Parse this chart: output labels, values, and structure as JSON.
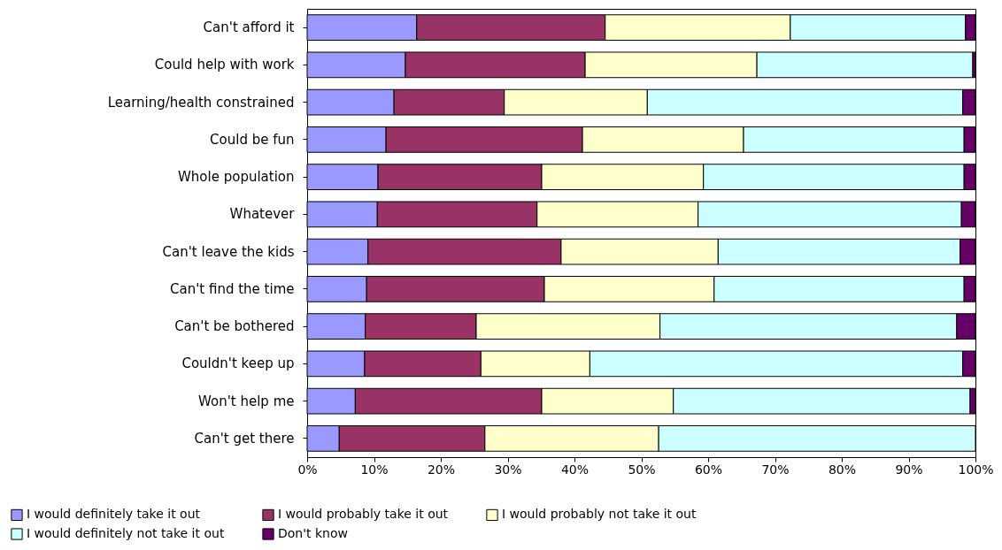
{
  "chart_data": {
    "type": "bar",
    "orientation": "horizontal",
    "stacked": true,
    "categories": [
      "Can't afford it",
      "Could help with work",
      "Learning/health constrained",
      "Could be fun",
      "Whole population",
      "Whatever",
      "Can't leave the kids",
      "Can't find the time",
      "Can't be bothered",
      "Couldn't keep up",
      "Won't help me",
      "Can't get there"
    ],
    "series": [
      {
        "name": "I would definitely take it out",
        "color": "#9999ff",
        "values": [
          16.4,
          14.7,
          13.0,
          11.8,
          10.6,
          10.5,
          9.1,
          8.9,
          8.7,
          8.6,
          7.2,
          4.8
        ]
      },
      {
        "name": "I would probably take it out",
        "color": "#993366",
        "values": [
          28.2,
          26.9,
          16.5,
          29.4,
          24.5,
          23.9,
          28.9,
          26.6,
          16.6,
          17.4,
          27.9,
          21.8
        ]
      },
      {
        "name": "I would probably not take it out",
        "color": "#ffffcc",
        "values": [
          27.7,
          25.7,
          21.4,
          24.1,
          24.2,
          24.1,
          23.5,
          25.4,
          27.5,
          16.3,
          19.7,
          26.0
        ]
      },
      {
        "name": "I would definitely not take it out",
        "color": "#ccffff",
        "values": [
          26.2,
          32.3,
          47.2,
          33.0,
          39.0,
          39.4,
          36.2,
          37.4,
          44.4,
          55.8,
          44.4,
          47.4
        ]
      },
      {
        "name": "Don't know",
        "color": "#660066",
        "values": [
          1.5,
          0.4,
          1.9,
          1.7,
          1.7,
          2.1,
          2.3,
          1.7,
          2.8,
          1.9,
          0.8,
          0
        ]
      }
    ],
    "xlim": [
      0,
      100
    ],
    "xticks": [
      {
        "value": 0,
        "label": "0%"
      },
      {
        "value": 10,
        "label": "10%"
      },
      {
        "value": 20,
        "label": "20%"
      },
      {
        "value": 30,
        "label": "30%"
      },
      {
        "value": 40,
        "label": "40%"
      },
      {
        "value": 50,
        "label": "50%"
      },
      {
        "value": 60,
        "label": "60%"
      },
      {
        "value": 70,
        "label": "70%"
      },
      {
        "value": 80,
        "label": "80%"
      },
      {
        "value": 90,
        "label": "90%"
      },
      {
        "value": 100,
        "label": "100%"
      }
    ],
    "legend": "bottom",
    "grid": false
  }
}
